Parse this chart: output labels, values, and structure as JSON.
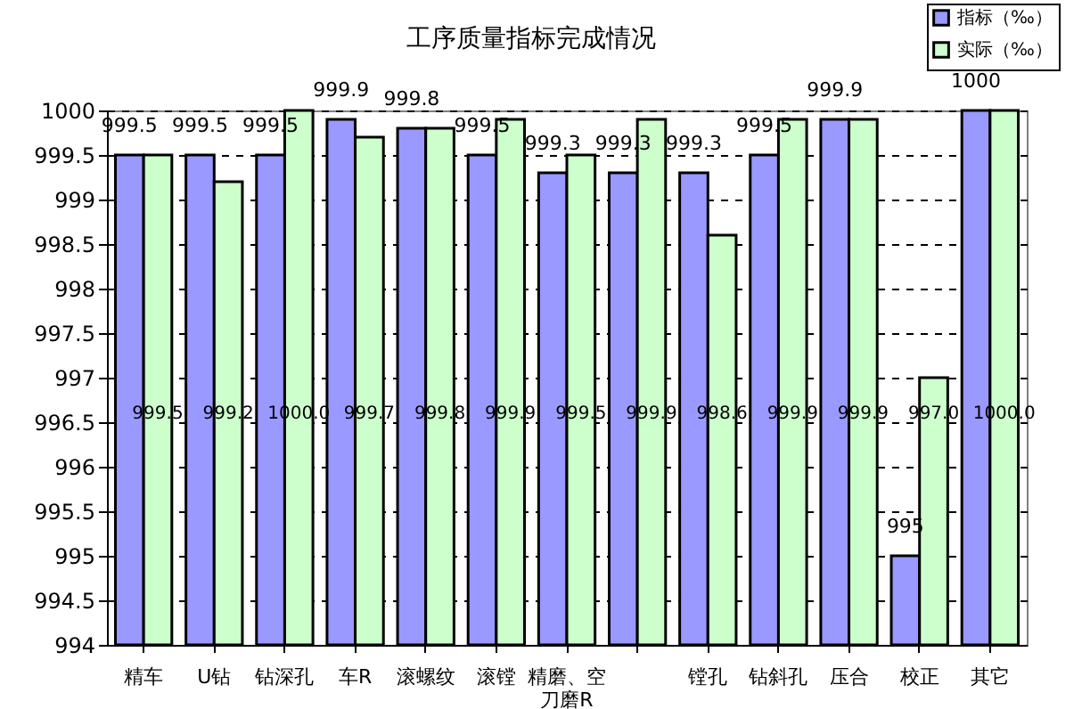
{
  "chart_data": {
    "type": "bar",
    "title": "工序质量指标完成情况",
    "categories": [
      "精车",
      "U钻",
      "钻深孔",
      "车R",
      "滚螺纹",
      "滚镗",
      "精磨、空刀磨R",
      null,
      "镗孔",
      "钻斜孔",
      "压合",
      "校正",
      "其它"
    ],
    "series": [
      {
        "name": "指标（‰）",
        "color": "#9999ff",
        "values": [
          999.5,
          999.5,
          999.5,
          999.9,
          999.8,
          999.5,
          999.3,
          999.3,
          999.3,
          999.5,
          999.9,
          995,
          1000
        ],
        "value_labels": [
          "999.5",
          "999.5",
          "999.5",
          "999.9",
          "999.8",
          "999.5",
          "999.3",
          "999.3",
          "999.3",
          "999.5",
          "999.9",
          "995",
          "1000"
        ]
      },
      {
        "name": "实际（‰）",
        "color": "#ccffcc",
        "values": [
          999.5,
          999.2,
          1000.0,
          999.7,
          999.8,
          999.9,
          999.5,
          999.9,
          998.6,
          999.9,
          999.9,
          997.0,
          1000.0
        ],
        "value_labels": [
          "999.5",
          "999.2",
          "1000.0",
          "999.7",
          "999.8",
          "999.9",
          "999.5",
          "999.9",
          "998.6",
          "999.9",
          "999.9",
          "997.0",
          "1000.0"
        ]
      }
    ],
    "ylim": [
      994,
      1000
    ],
    "yticks": [
      994,
      994.5,
      995,
      995.5,
      996,
      996.5,
      997,
      997.5,
      998,
      998.5,
      999,
      999.5,
      1000
    ],
    "grid": "y",
    "legend": "top right"
  }
}
